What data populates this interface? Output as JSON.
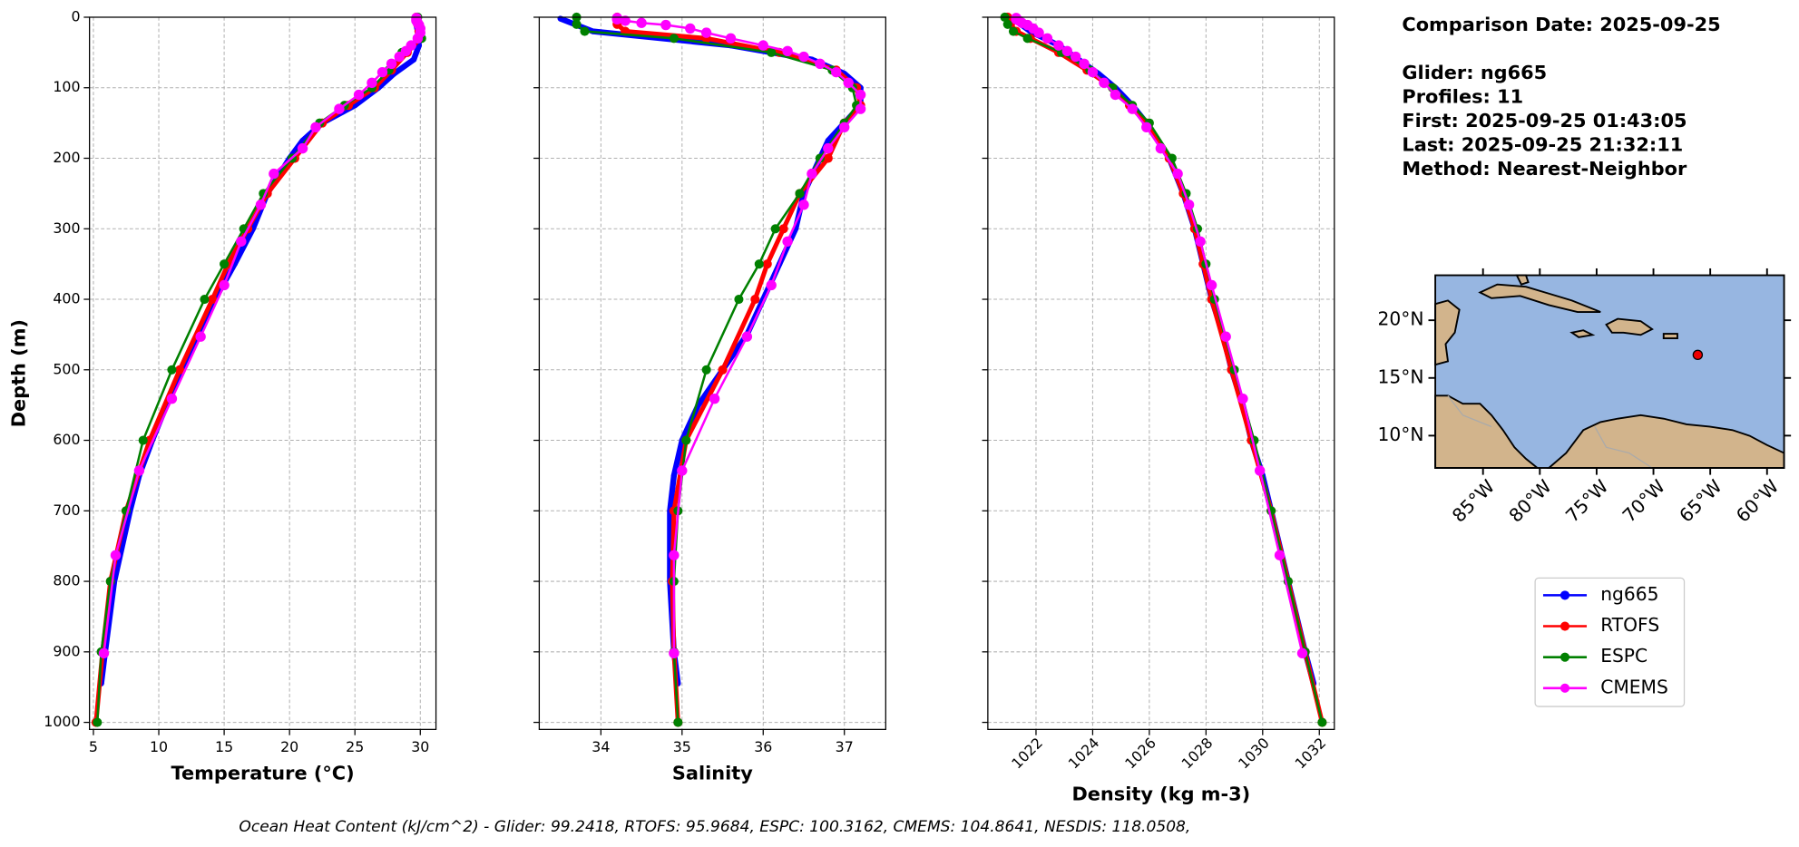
{
  "chart_data": [
    {
      "type": "line",
      "xlabel": "Temperature (°C)",
      "ylabel": "Depth (m)",
      "grid": true,
      "show_ytick_labels": true,
      "xlim": [
        4.7,
        31.2
      ],
      "xticks": [
        5,
        10,
        15,
        20,
        25,
        30
      ],
      "ylim": [
        1010,
        0
      ],
      "yticks": [
        0,
        100,
        200,
        300,
        400,
        500,
        600,
        700,
        800,
        900,
        1000
      ],
      "series": [
        {
          "name": "ng665",
          "color": "#0000ff",
          "y": [
            2,
            20,
            40,
            60,
            80,
            100,
            125,
            150,
            175,
            200,
            250,
            300,
            350,
            400,
            450,
            500,
            550,
            600,
            650,
            700,
            800,
            900,
            945
          ],
          "x": [
            29.6,
            29.8,
            29.9,
            29.5,
            28.0,
            26.8,
            25.0,
            22.5,
            21.0,
            20.0,
            18.3,
            17.2,
            15.8,
            14.3,
            13.0,
            11.8,
            10.6,
            9.5,
            8.5,
            7.8,
            6.6,
            5.9,
            5.6
          ]
        },
        {
          "name": "RTOFS",
          "color": "#ff0000",
          "y": [
            0,
            10,
            20,
            30,
            50,
            75,
            100,
            125,
            150,
            200,
            250,
            300,
            350,
            400,
            500,
            600,
            700,
            800,
            900,
            1000
          ],
          "x": [
            29.7,
            29.8,
            29.9,
            30.0,
            29.0,
            27.8,
            26.5,
            24.5,
            22.5,
            20.4,
            18.3,
            16.8,
            15.3,
            14.1,
            11.6,
            9.3,
            7.5,
            6.3,
            5.7,
            5.2
          ]
        },
        {
          "name": "ESPC",
          "color": "#008000",
          "y": [
            0,
            10,
            20,
            30,
            50,
            75,
            100,
            125,
            150,
            200,
            250,
            300,
            350,
            400,
            500,
            600,
            700,
            800,
            900,
            1000
          ],
          "x": [
            29.8,
            29.9,
            30.0,
            30.1,
            28.6,
            27.6,
            26.3,
            24.2,
            22.3,
            20.2,
            18.0,
            16.5,
            15.0,
            13.5,
            11.0,
            8.8,
            7.5,
            6.3,
            5.6,
            5.3
          ]
        },
        {
          "name": "CMEMS",
          "color": "#ff00ff",
          "y": [
            1,
            3,
            5,
            8,
            11,
            16,
            22,
            30,
            40,
            48,
            56,
            66,
            78,
            93,
            110,
            130,
            156,
            186,
            222,
            266,
            318,
            380,
            453,
            541,
            643,
            763,
            902
          ],
          "x": [
            29.7,
            29.7,
            29.7,
            29.8,
            29.9,
            30.0,
            30.0,
            29.8,
            29.3,
            28.9,
            28.4,
            27.8,
            27.1,
            26.3,
            25.3,
            23.8,
            22.0,
            21.0,
            18.8,
            17.8,
            16.3,
            15.0,
            13.2,
            11.0,
            8.5,
            6.7,
            5.8
          ]
        }
      ]
    },
    {
      "type": "line",
      "xlabel": "Salinity",
      "grid": true,
      "show_ytick_labels": false,
      "xlim": [
        33.24,
        37.51
      ],
      "xticks": [
        34,
        35,
        36,
        37
      ],
      "ylim": [
        1010,
        0
      ],
      "yticks": [
        0,
        100,
        200,
        300,
        400,
        500,
        600,
        700,
        800,
        900,
        1000
      ],
      "series": [
        {
          "name": "ng665",
          "color": "#0000ff",
          "y": [
            2,
            20,
            40,
            60,
            80,
            100,
            125,
            150,
            175,
            200,
            250,
            300,
            350,
            400,
            450,
            500,
            550,
            600,
            650,
            700,
            800,
            900,
            945
          ],
          "x": [
            33.5,
            33.9,
            35.6,
            36.6,
            37.0,
            37.2,
            37.2,
            37.0,
            36.8,
            36.7,
            36.5,
            36.4,
            36.2,
            36.0,
            35.8,
            35.5,
            35.2,
            35.0,
            34.9,
            34.85,
            34.85,
            34.9,
            34.95
          ]
        },
        {
          "name": "RTOFS",
          "color": "#ff0000",
          "y": [
            0,
            10,
            20,
            30,
            50,
            75,
            100,
            125,
            150,
            200,
            250,
            300,
            350,
            400,
            500,
            600,
            700,
            800,
            900,
            1000
          ],
          "x": [
            34.2,
            34.2,
            34.3,
            35.3,
            36.2,
            36.9,
            37.15,
            37.2,
            37.0,
            36.8,
            36.45,
            36.25,
            36.05,
            35.9,
            35.5,
            35.05,
            34.9,
            34.88,
            34.9,
            34.95
          ]
        },
        {
          "name": "ESPC",
          "color": "#008000",
          "y": [
            0,
            10,
            20,
            30,
            50,
            75,
            100,
            125,
            150,
            200,
            250,
            300,
            350,
            400,
            500,
            600,
            700,
            800,
            900,
            1000
          ],
          "x": [
            33.7,
            33.7,
            33.8,
            34.9,
            36.1,
            36.85,
            37.1,
            37.15,
            37.0,
            36.7,
            36.45,
            36.15,
            35.95,
            35.7,
            35.3,
            35.05,
            34.95,
            34.9,
            34.9,
            34.95
          ]
        },
        {
          "name": "CMEMS",
          "color": "#ff00ff",
          "y": [
            1,
            3,
            5,
            8,
            11,
            16,
            22,
            30,
            40,
            48,
            56,
            66,
            78,
            93,
            110,
            130,
            156,
            186,
            222,
            266,
            318,
            380,
            453,
            541,
            643,
            763,
            902
          ],
          "x": [
            34.2,
            34.2,
            34.3,
            34.5,
            34.8,
            35.1,
            35.3,
            35.6,
            36.0,
            36.3,
            36.5,
            36.7,
            36.9,
            37.05,
            37.2,
            37.2,
            37.0,
            36.8,
            36.6,
            36.5,
            36.3,
            36.1,
            35.8,
            35.4,
            35.0,
            34.9,
            34.9
          ]
        }
      ]
    },
    {
      "type": "line",
      "xlabel": "Density (kg m-3)",
      "grid": true,
      "show_ytick_labels": false,
      "xtick_rotation": 45,
      "xlim": [
        1020.3,
        1032.53
      ],
      "xticks": [
        1022,
        1024,
        1026,
        1028,
        1030,
        1032
      ],
      "ylim": [
        1010,
        0
      ],
      "yticks": [
        0,
        100,
        200,
        300,
        400,
        500,
        600,
        700,
        800,
        900,
        1000
      ],
      "series": [
        {
          "name": "ng665",
          "color": "#0000ff",
          "y": [
            2,
            20,
            40,
            60,
            80,
            100,
            125,
            150,
            175,
            200,
            250,
            300,
            350,
            400,
            450,
            500,
            550,
            600,
            650,
            700,
            800,
            900,
            945
          ],
          "x": [
            1021.2,
            1021.8,
            1022.8,
            1023.5,
            1024.2,
            1024.8,
            1025.4,
            1025.9,
            1026.3,
            1026.7,
            1027.2,
            1027.6,
            1027.9,
            1028.2,
            1028.6,
            1028.9,
            1029.3,
            1029.6,
            1030.0,
            1030.3,
            1030.9,
            1031.5,
            1031.8
          ]
        },
        {
          "name": "RTOFS",
          "color": "#ff0000",
          "y": [
            0,
            10,
            20,
            30,
            50,
            75,
            100,
            125,
            150,
            200,
            250,
            300,
            350,
            400,
            500,
            600,
            700,
            800,
            900,
            1000
          ],
          "x": [
            1021.0,
            1021.1,
            1021.3,
            1021.8,
            1022.8,
            1023.8,
            1024.7,
            1025.3,
            1025.9,
            1026.7,
            1027.2,
            1027.6,
            1027.9,
            1028.2,
            1028.9,
            1029.6,
            1030.3,
            1030.9,
            1031.5,
            1032.1
          ]
        },
        {
          "name": "ESPC",
          "color": "#008000",
          "y": [
            0,
            10,
            20,
            30,
            50,
            75,
            100,
            125,
            150,
            200,
            250,
            300,
            350,
            400,
            500,
            600,
            700,
            800,
            900,
            1000
          ],
          "x": [
            1020.9,
            1021.0,
            1021.2,
            1021.7,
            1022.9,
            1023.9,
            1024.7,
            1025.4,
            1026.0,
            1026.8,
            1027.3,
            1027.7,
            1028.0,
            1028.3,
            1029.0,
            1029.7,
            1030.3,
            1030.9,
            1031.5,
            1032.1
          ]
        },
        {
          "name": "CMEMS",
          "color": "#ff00ff",
          "y": [
            1,
            3,
            5,
            8,
            11,
            16,
            22,
            30,
            40,
            48,
            56,
            66,
            78,
            93,
            110,
            130,
            156,
            186,
            222,
            266,
            318,
            380,
            453,
            541,
            643,
            763,
            902
          ],
          "x": [
            1021.3,
            1021.3,
            1021.4,
            1021.5,
            1021.7,
            1021.9,
            1022.1,
            1022.4,
            1022.8,
            1023.1,
            1023.4,
            1023.7,
            1024.0,
            1024.4,
            1024.8,
            1025.4,
            1025.9,
            1026.4,
            1027.0,
            1027.4,
            1027.8,
            1028.2,
            1028.7,
            1029.3,
            1029.9,
            1030.6,
            1031.4
          ]
        }
      ]
    }
  ],
  "info_lines": [
    "Comparison Date: 2025-09-25",
    "Glider: ng665",
    "Profiles: 11",
    "First: 2025-09-25 01:43:05",
    "Last: 2025-09-25 21:32:11",
    "Method: Nearest-Neighbor"
  ],
  "map": {
    "lonlim": [
      -89.2,
      -58.5
    ],
    "latlim": [
      7.2,
      23.9
    ],
    "lon_ticks": [
      {
        "value": -85,
        "label": "85°W"
      },
      {
        "value": -80,
        "label": "80°W"
      },
      {
        "value": -75,
        "label": "75°W"
      },
      {
        "value": -70,
        "label": "70°W"
      },
      {
        "value": -65,
        "label": "65°W"
      },
      {
        "value": -60,
        "label": "60°W"
      }
    ],
    "lat_ticks": [
      {
        "value": 10,
        "label": "10°N"
      },
      {
        "value": 15,
        "label": "15°N"
      },
      {
        "value": 20,
        "label": "20°N"
      }
    ],
    "glider_position": {
      "lon": -66.1,
      "lat": 17.0
    }
  },
  "footer": "Ocean Heat Content (kJ/cm^2) - Glider: 99.2418,  RTOFS: 95.9684,  ESPC: 100.3162,  CMEMS: 104.8641,  NESDIS: 118.0508,"
}
